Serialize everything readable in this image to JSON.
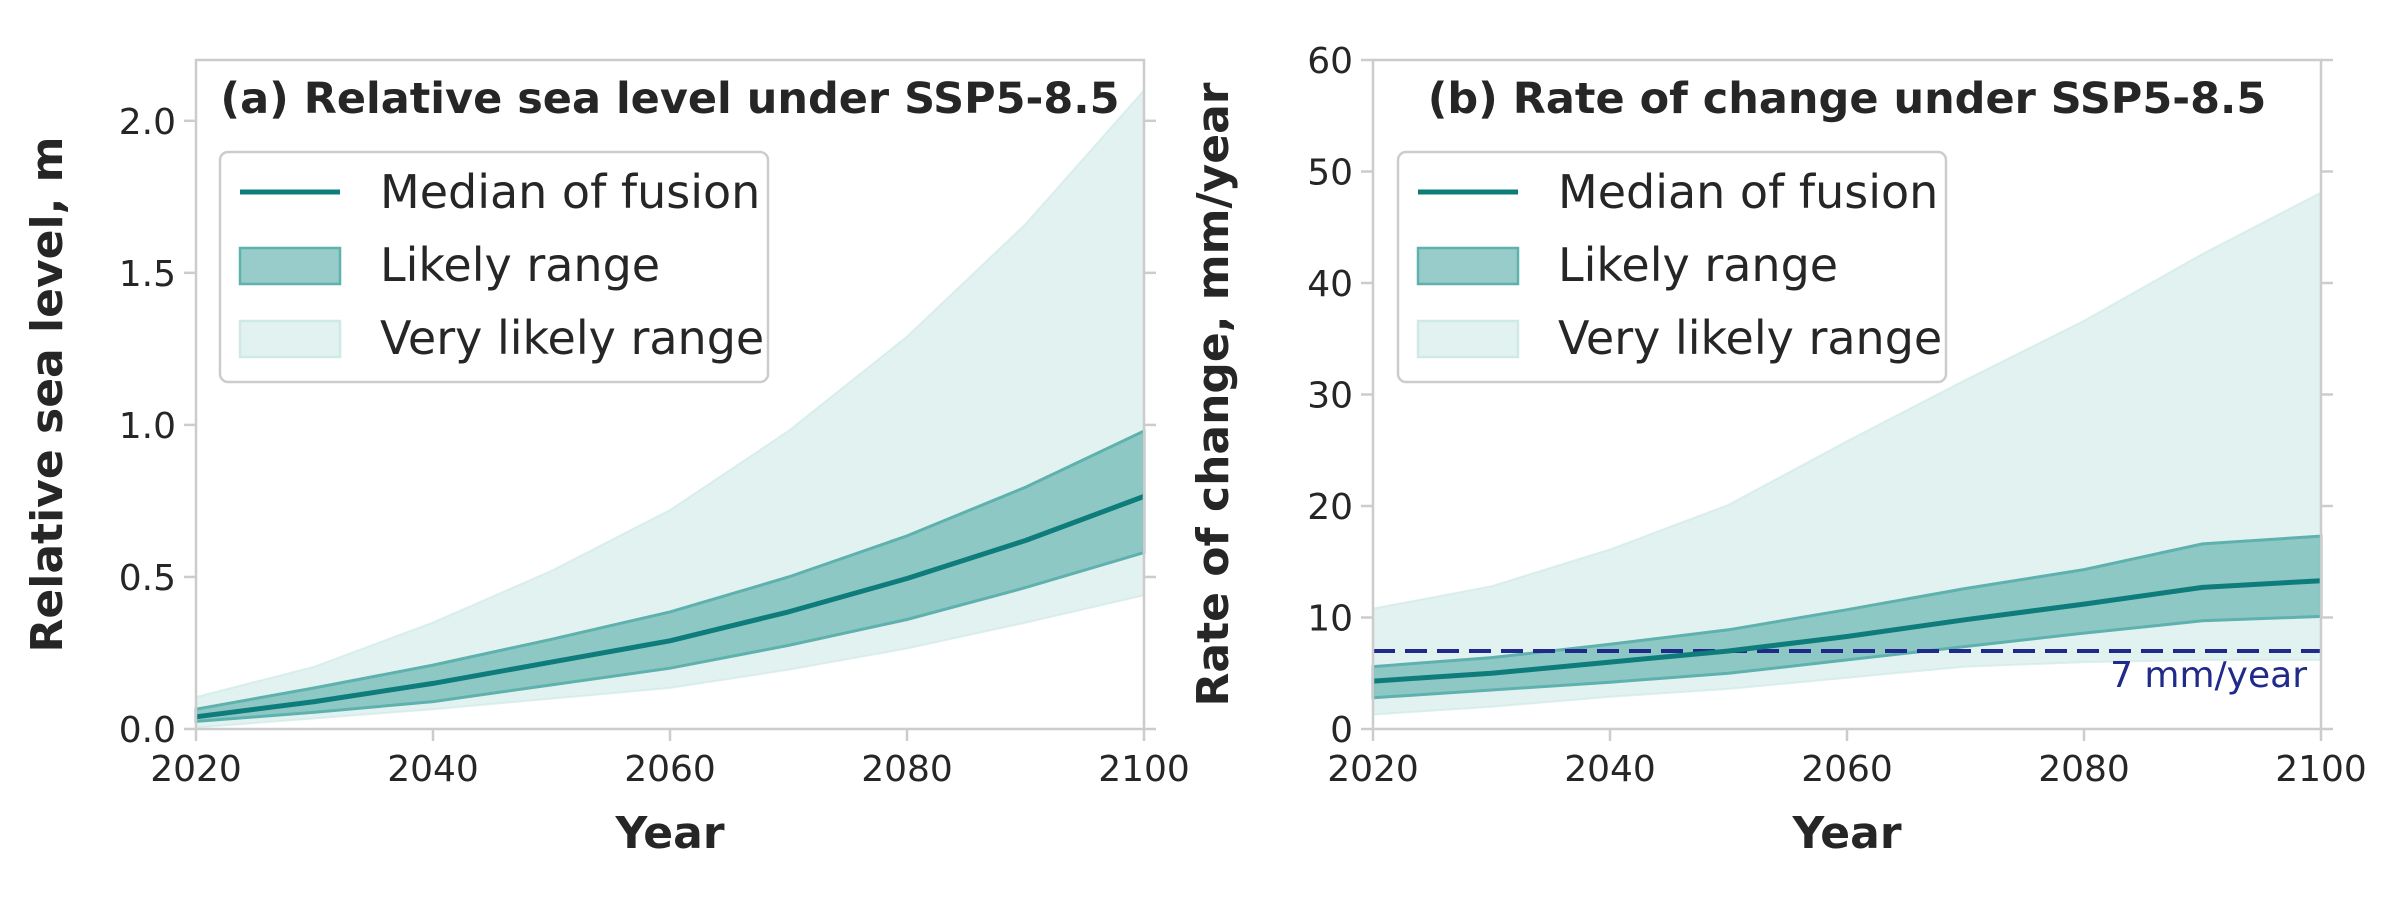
{
  "chart_data": [
    {
      "type": "area",
      "title": "(a) Relative sea level under SSP5-8.5",
      "xlabel": "Year",
      "ylabel": "Relative sea level, m",
      "xlim": [
        2020,
        2100
      ],
      "ylim": [
        0,
        2.2
      ],
      "xticks": [
        2020,
        2040,
        2060,
        2080,
        2100
      ],
      "yticks": [
        0.0,
        0.5,
        1.0,
        1.5,
        2.0
      ],
      "ytick_labels": [
        "0.0",
        "0.5",
        "1.0",
        "1.5",
        "2.0"
      ],
      "grid": false,
      "legend_position": "top-left",
      "x": [
        2020,
        2030,
        2040,
        2050,
        2060,
        2070,
        2080,
        2090,
        2100
      ],
      "series": [
        {
          "name": "Median of fusion",
          "kind": "line",
          "color": "#0e7c7b",
          "values": [
            0.04,
            0.09,
            0.15,
            0.22,
            0.29,
            0.385,
            0.495,
            0.62,
            0.765
          ]
        },
        {
          "name": "Likely range",
          "kind": "band",
          "color": "#5fb1ae",
          "lower": [
            0.025,
            0.055,
            0.09,
            0.145,
            0.2,
            0.275,
            0.36,
            0.465,
            0.58
          ],
          "upper": [
            0.065,
            0.135,
            0.21,
            0.295,
            0.385,
            0.5,
            0.635,
            0.795,
            0.98
          ]
        },
        {
          "name": "Very likely range",
          "kind": "band",
          "color": "#cfe9e7",
          "lower": [
            0.005,
            0.035,
            0.065,
            0.1,
            0.135,
            0.195,
            0.265,
            0.35,
            0.44
          ],
          "upper": [
            0.105,
            0.205,
            0.35,
            0.52,
            0.72,
            0.98,
            1.29,
            1.66,
            2.1
          ]
        }
      ]
    },
    {
      "type": "area",
      "title": "(b) Rate of change under SSP5-8.5",
      "xlabel": "Year",
      "ylabel": "Rate of change, mm/year",
      "xlim": [
        2020,
        2100
      ],
      "ylim": [
        0,
        60
      ],
      "xticks": [
        2020,
        2040,
        2060,
        2080,
        2100
      ],
      "yticks": [
        0,
        10,
        20,
        30,
        40,
        50,
        60
      ],
      "ytick_labels": [
        "0",
        "10",
        "20",
        "30",
        "40",
        "50",
        "60"
      ],
      "grid": false,
      "legend_position": "top-left",
      "x": [
        2020,
        2030,
        2040,
        2050,
        2060,
        2070,
        2080,
        2090,
        2100
      ],
      "series": [
        {
          "name": "Median of fusion",
          "kind": "line",
          "color": "#0e7c7b",
          "values": [
            4.3,
            5.0,
            6.0,
            7.0,
            8.3,
            9.8,
            11.2,
            12.7,
            13.3
          ]
        },
        {
          "name": "Likely range",
          "kind": "band",
          "color": "#5fb1ae",
          "lower": [
            2.8,
            3.5,
            4.2,
            5.0,
            6.2,
            7.4,
            8.6,
            9.7,
            10.1
          ],
          "upper": [
            5.6,
            6.4,
            7.6,
            8.9,
            10.7,
            12.6,
            14.3,
            16.6,
            17.3
          ]
        },
        {
          "name": "Very likely range",
          "kind": "band",
          "color": "#cfe9e7",
          "lower": [
            1.3,
            2.0,
            2.9,
            3.6,
            4.6,
            5.6,
            6.0,
            6.2,
            6.2
          ],
          "upper": [
            10.8,
            12.8,
            16.1,
            20.1,
            25.8,
            31.3,
            36.6,
            42.6,
            48.1
          ]
        }
      ],
      "reference_lines": [
        {
          "y": 7,
          "label": "7 mm/year",
          "color": "#1f2a8a",
          "style": "dashed"
        }
      ]
    }
  ]
}
